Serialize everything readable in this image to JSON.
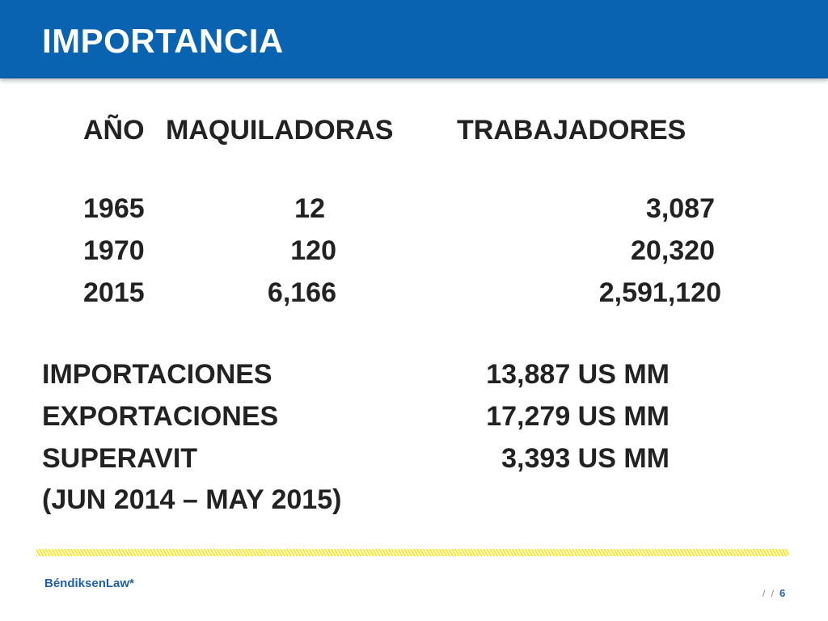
{
  "header": {
    "title": "IMPORTANCIA"
  },
  "census_table": {
    "headers": {
      "year": "AÑO",
      "plants": "MAQUILADORAS",
      "workers": "TRABAJADORES"
    },
    "rows": [
      {
        "year": "1965",
        "plants": "12",
        "workers": "3,087"
      },
      {
        "year": "1970",
        "plants": "120",
        "workers": "20,320"
      },
      {
        "year": "2015",
        "plants": "6,166",
        "workers": "2,591,120"
      }
    ]
  },
  "trade_table": {
    "rows": [
      {
        "label": "IMPORTACIONES",
        "value": "13,887 US MM"
      },
      {
        "label": "EXPORTACIONES",
        "value": "17,279 US MM"
      },
      {
        "label": "SUPERAVIT",
        "value": "3,393 US MM"
      }
    ],
    "period": "(JUN 2014 – MAY 2015)"
  },
  "footer": {
    "brand": "BéndiksenLaw*",
    "page_separator": "/ /",
    "page_number": "6"
  },
  "colors": {
    "header_band": "#0a63b0",
    "title_text": "#ffffff",
    "body_text": "#222222",
    "stripe": "#ffe400",
    "brand": "#1f5fa6"
  }
}
